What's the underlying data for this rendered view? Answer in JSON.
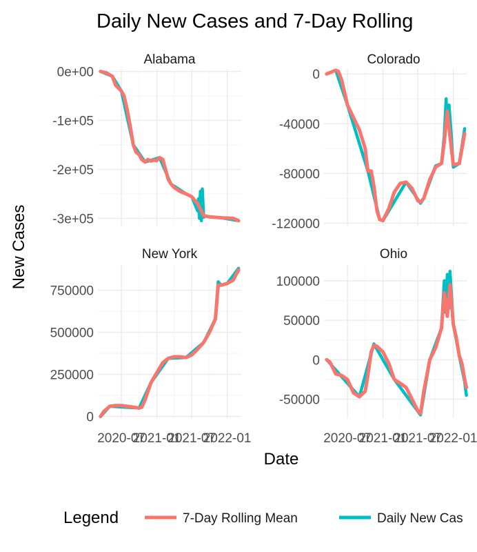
{
  "chart_data": {
    "type": "line",
    "title": "Daily New Cases and 7-Day Rolling",
    "xlabel": "Date",
    "ylabel": "New Cases",
    "legend": {
      "title": "Legend",
      "position": "bottom",
      "entries": [
        {
          "label": "7-Day Rolling Mean",
          "color": "#F8766D"
        },
        {
          "label": "Daily New Cas",
          "color": "#00BFC4"
        }
      ]
    },
    "x_tick_labels": [
      "2020-07",
      "2021-01",
      "2021-07",
      "2022-01"
    ],
    "x_tick_values": [
      "2020-07-01",
      "2021-01-01",
      "2021-07-01",
      "2022-01-01"
    ],
    "xlim": [
      "2020-03-01",
      "2022-03-15"
    ],
    "grid": true,
    "facets": [
      {
        "name": "Alabama",
        "ylim": [
          -315000,
          5000
        ],
        "y_ticks": [
          0,
          -100000,
          -200000,
          -300000
        ],
        "y_tick_labels": [
          "0e+00",
          "-1e+05",
          "-2e+05",
          "-3e+05"
        ],
        "series": [
          {
            "name": "7-Day Rolling Mean",
            "color": "#F8766D",
            "points": [
              [
                "2020-03-15",
                0
              ],
              [
                "2020-04-15",
                -3000
              ],
              [
                "2020-05-15",
                -10000
              ],
              [
                "2020-06-01",
                -28000
              ],
              [
                "2020-07-01",
                -40000
              ],
              [
                "2020-07-15",
                -50000
              ],
              [
                "2020-08-01",
                -80000
              ],
              [
                "2020-08-15",
                -110000
              ],
              [
                "2020-09-01",
                -150000
              ],
              [
                "2020-09-15",
                -165000
              ],
              [
                "2020-10-01",
                -170000
              ],
              [
                "2020-10-15",
                -180000
              ],
              [
                "2020-11-01",
                -185000
              ],
              [
                "2020-11-15",
                -180000
              ],
              [
                "2020-12-01",
                -183000
              ],
              [
                "2020-12-15",
                -181000
              ],
              [
                "2021-01-01",
                -182000
              ],
              [
                "2021-01-15",
                -176000
              ],
              [
                "2021-02-01",
                -180000
              ],
              [
                "2021-02-15",
                -200000
              ],
              [
                "2021-03-01",
                -220000
              ],
              [
                "2021-03-15",
                -230000
              ],
              [
                "2021-04-01",
                -237000
              ],
              [
                "2021-05-01",
                -245000
              ],
              [
                "2021-06-01",
                -250000
              ],
              [
                "2021-07-01",
                -256000
              ],
              [
                "2021-08-01",
                -270000
              ],
              [
                "2021-09-01",
                -295000
              ],
              [
                "2021-10-01",
                -297000
              ],
              [
                "2021-12-01",
                -299000
              ],
              [
                "2022-02-01",
                -300000
              ],
              [
                "2022-03-01",
                -305000
              ]
            ]
          },
          {
            "name": "Daily New Cas",
            "color": "#00BFC4",
            "points": [
              [
                "2020-03-15",
                0
              ],
              [
                "2020-05-15",
                -10000
              ],
              [
                "2020-07-01",
                -40000
              ],
              [
                "2020-09-01",
                -150000
              ],
              [
                "2020-11-01",
                -185000
              ],
              [
                "2021-01-15",
                -176000
              ],
              [
                "2021-03-15",
                -230000
              ],
              [
                "2021-06-01",
                -250000
              ],
              [
                "2021-07-01",
                -256000
              ],
              [
                "2021-08-01",
                -285000
              ],
              [
                "2021-08-05",
                -260000
              ],
              [
                "2021-08-10",
                -300000
              ],
              [
                "2021-08-15",
                -245000
              ],
              [
                "2021-08-20",
                -305000
              ],
              [
                "2021-08-25",
                -240000
              ],
              [
                "2021-09-01",
                -298000
              ],
              [
                "2021-09-10",
                -295000
              ],
              [
                "2021-10-01",
                -297000
              ],
              [
                "2021-12-01",
                -299000
              ],
              [
                "2022-03-01",
                -305000
              ]
            ]
          }
        ]
      },
      {
        "name": "Colorado",
        "ylim": [
          -122000,
          4000
        ],
        "y_ticks": [
          0,
          -40000,
          -80000,
          -120000
        ],
        "y_tick_labels": [
          "0",
          "-40000",
          "-80000",
          "-120000"
        ],
        "series": [
          {
            "name": "7-Day Rolling Mean",
            "color": "#F8766D",
            "points": [
              [
                "2020-03-15",
                0
              ],
              [
                "2020-04-15",
                2000
              ],
              [
                "2020-05-01",
                3000
              ],
              [
                "2020-05-15",
                2000
              ],
              [
                "2020-06-01",
                -5000
              ],
              [
                "2020-07-01",
                -25000
              ],
              [
                "2020-08-01",
                -35000
              ],
              [
                "2020-09-01",
                -45000
              ],
              [
                "2020-10-01",
                -60000
              ],
              [
                "2020-10-15",
                -78000
              ],
              [
                "2020-11-01",
                -78000
              ],
              [
                "2020-11-15",
                -90000
              ],
              [
                "2020-12-01",
                -110000
              ],
              [
                "2020-12-15",
                -117000
              ],
              [
                "2021-01-01",
                -118000
              ],
              [
                "2021-02-01",
                -108000
              ],
              [
                "2021-03-01",
                -95000
              ],
              [
                "2021-04-01",
                -88000
              ],
              [
                "2021-05-01",
                -87000
              ],
              [
                "2021-06-01",
                -92000
              ],
              [
                "2021-07-01",
                -102000
              ],
              [
                "2021-07-15",
                -103000
              ],
              [
                "2021-08-01",
                -100000
              ],
              [
                "2021-09-01",
                -85000
              ],
              [
                "2021-10-01",
                -75000
              ],
              [
                "2021-11-01",
                -72000
              ],
              [
                "2021-11-15",
                -55000
              ],
              [
                "2021-12-01",
                -30000
              ],
              [
                "2021-12-15",
                -50000
              ],
              [
                "2022-01-01",
                -73000
              ],
              [
                "2022-02-01",
                -72000
              ],
              [
                "2022-02-15",
                -60000
              ],
              [
                "2022-03-01",
                -48000
              ]
            ]
          },
          {
            "name": "Daily New Cas",
            "color": "#00BFC4",
            "points": [
              [
                "2020-03-15",
                0
              ],
              [
                "2020-05-01",
                3000
              ],
              [
                "2020-07-01",
                -25000
              ],
              [
                "2020-10-15",
                -78000
              ],
              [
                "2020-12-15",
                -117000
              ],
              [
                "2021-01-01",
                -118000
              ],
              [
                "2021-05-01",
                -87000
              ],
              [
                "2021-07-15",
                -104000
              ],
              [
                "2021-08-01",
                -100000
              ],
              [
                "2021-10-01",
                -74000
              ],
              [
                "2021-11-01",
                -72000
              ],
              [
                "2021-11-15",
                -50000
              ],
              [
                "2021-11-25",
                -20000
              ],
              [
                "2021-12-01",
                -40000
              ],
              [
                "2021-12-10",
                -25000
              ],
              [
                "2021-12-20",
                -45000
              ],
              [
                "2022-01-01",
                -75000
              ],
              [
                "2022-02-01",
                -72000
              ],
              [
                "2022-03-01",
                -44000
              ]
            ]
          }
        ]
      },
      {
        "name": "New York",
        "ylim": [
          -10000,
          900000
        ],
        "y_ticks": [
          0,
          250000,
          500000,
          750000
        ],
        "y_tick_labels": [
          "0",
          "250000",
          "500000",
          "750000"
        ],
        "series": [
          {
            "name": "7-Day Rolling Mean",
            "color": "#F8766D",
            "points": [
              [
                "2020-03-15",
                0
              ],
              [
                "2020-04-01",
                30000
              ],
              [
                "2020-05-01",
                60000
              ],
              [
                "2020-06-01",
                65000
              ],
              [
                "2020-07-01",
                65000
              ],
              [
                "2020-08-01",
                60000
              ],
              [
                "2020-09-01",
                55000
              ],
              [
                "2020-10-01",
                50000
              ],
              [
                "2020-10-15",
                55000
              ],
              [
                "2020-11-01",
                100000
              ],
              [
                "2020-12-01",
                200000
              ],
              [
                "2021-01-01",
                260000
              ],
              [
                "2021-02-01",
                320000
              ],
              [
                "2021-03-01",
                345000
              ],
              [
                "2021-04-01",
                355000
              ],
              [
                "2021-05-01",
                355000
              ],
              [
                "2021-06-01",
                350000
              ],
              [
                "2021-07-01",
                365000
              ],
              [
                "2021-08-01",
                400000
              ],
              [
                "2021-09-01",
                440000
              ],
              [
                "2021-10-01",
                500000
              ],
              [
                "2021-11-01",
                580000
              ],
              [
                "2021-11-15",
                780000
              ],
              [
                "2021-12-01",
                780000
              ],
              [
                "2022-01-01",
                790000
              ],
              [
                "2022-02-01",
                810000
              ],
              [
                "2022-03-01",
                870000
              ]
            ]
          },
          {
            "name": "Daily New Cas",
            "color": "#00BFC4",
            "points": [
              [
                "2020-03-15",
                0
              ],
              [
                "2020-05-01",
                60000
              ],
              [
                "2020-10-01",
                50000
              ],
              [
                "2020-12-01",
                200000
              ],
              [
                "2021-03-01",
                345000
              ],
              [
                "2021-06-01",
                350000
              ],
              [
                "2021-09-01",
                440000
              ],
              [
                "2021-11-01",
                580000
              ],
              [
                "2021-11-15",
                800000
              ],
              [
                "2021-12-01",
                780000
              ],
              [
                "2022-01-01",
                790000
              ],
              [
                "2022-03-01",
                880000
              ]
            ]
          }
        ]
      },
      {
        "name": "Ohio",
        "ylim": [
          -74000,
          120000
        ],
        "y_ticks": [
          -50000,
          0,
          50000,
          100000
        ],
        "y_tick_labels": [
          "-50000",
          "0",
          "50000",
          "100000"
        ],
        "series": [
          {
            "name": "7-Day Rolling Mean",
            "color": "#F8766D",
            "points": [
              [
                "2020-03-15",
                0
              ],
              [
                "2020-04-01",
                -3000
              ],
              [
                "2020-05-01",
                -18000
              ],
              [
                "2020-06-01",
                -20000
              ],
              [
                "2020-07-01",
                -25000
              ],
              [
                "2020-08-01",
                -42000
              ],
              [
                "2020-09-01",
                -47000
              ],
              [
                "2020-10-01",
                -40000
              ],
              [
                "2020-10-15",
                -20000
              ],
              [
                "2020-11-01",
                10000
              ],
              [
                "2020-11-15",
                18000
              ],
              [
                "2020-12-01",
                17000
              ],
              [
                "2021-01-01",
                10000
              ],
              [
                "2021-02-01",
                -5000
              ],
              [
                "2021-03-01",
                -25000
              ],
              [
                "2021-04-01",
                -30000
              ],
              [
                "2021-05-01",
                -35000
              ],
              [
                "2021-06-01",
                -50000
              ],
              [
                "2021-07-01",
                -65000
              ],
              [
                "2021-07-15",
                -68000
              ],
              [
                "2021-08-01",
                -40000
              ],
              [
                "2021-09-01",
                0
              ],
              [
                "2021-10-01",
                15000
              ],
              [
                "2021-11-01",
                40000
              ],
              [
                "2021-11-15",
                85000
              ],
              [
                "2021-12-01",
                55000
              ],
              [
                "2021-12-15",
                95000
              ],
              [
                "2022-01-01",
                45000
              ],
              [
                "2022-01-15",
                30000
              ],
              [
                "2022-02-01",
                5000
              ],
              [
                "2022-02-15",
                -5000
              ],
              [
                "2022-03-01",
                -25000
              ],
              [
                "2022-03-10",
                -35000
              ]
            ]
          },
          {
            "name": "Daily New Cas",
            "color": "#00BFC4",
            "points": [
              [
                "2020-03-15",
                0
              ],
              [
                "2020-09-01",
                -47000
              ],
              [
                "2020-11-15",
                20000
              ],
              [
                "2021-03-01",
                -25000
              ],
              [
                "2021-07-15",
                -70000
              ],
              [
                "2021-09-01",
                0
              ],
              [
                "2021-11-01",
                40000
              ],
              [
                "2021-11-15",
                100000
              ],
              [
                "2021-11-22",
                60000
              ],
              [
                "2021-12-01",
                108000
              ],
              [
                "2021-12-08",
                65000
              ],
              [
                "2021-12-15",
                112000
              ],
              [
                "2022-01-01",
                45000
              ],
              [
                "2022-02-01",
                5000
              ],
              [
                "2022-03-01",
                -28000
              ],
              [
                "2022-03-10",
                -45000
              ]
            ]
          }
        ]
      }
    ]
  }
}
